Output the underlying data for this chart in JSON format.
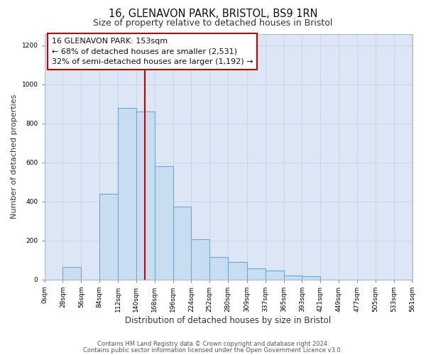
{
  "title1": "16, GLENAVON PARK, BRISTOL, BS9 1RN",
  "title2": "Size of property relative to detached houses in Bristol",
  "xlabel": "Distribution of detached houses by size in Bristol",
  "ylabel": "Number of detached properties",
  "bin_edges": [
    0,
    28,
    56,
    84,
    112,
    140,
    168,
    196,
    224,
    252,
    280,
    309,
    337,
    365,
    393,
    421,
    449,
    477,
    505,
    533,
    561
  ],
  "bar_heights": [
    0,
    65,
    0,
    440,
    880,
    860,
    580,
    375,
    205,
    115,
    90,
    55,
    45,
    20,
    15,
    0,
    0,
    0,
    0,
    0
  ],
  "bar_color": "#c9ddf0",
  "bar_edge_color": "#6aaad4",
  "vline_x": 153,
  "vline_color": "#cc0000",
  "ylim": [
    0,
    1260
  ],
  "yticks": [
    0,
    200,
    400,
    600,
    800,
    1000,
    1200
  ],
  "xtick_labels": [
    "0sqm",
    "28sqm",
    "56sqm",
    "84sqm",
    "112sqm",
    "140sqm",
    "168sqm",
    "196sqm",
    "224sqm",
    "252sqm",
    "280sqm",
    "309sqm",
    "337sqm",
    "365sqm",
    "393sqm",
    "421sqm",
    "449sqm",
    "477sqm",
    "505sqm",
    "533sqm",
    "561sqm"
  ],
  "annotation_title": "16 GLENAVON PARK: 153sqm",
  "annotation_line1": "← 68% of detached houses are smaller (2,531)",
  "annotation_line2": "32% of semi-detached houses are larger (1,192) →",
  "annotation_box_color": "#ffffff",
  "annotation_border_color": "#cc0000",
  "footer_line1": "Contains HM Land Registry data © Crown copyright and database right 2024.",
  "footer_line2": "Contains public sector information licensed under the Open Government Licence v3.0.",
  "grid_color": "#c8d4e8",
  "plot_bg_color": "#dce6f4",
  "fig_bg_color": "#ffffff",
  "title1_fontsize": 10.5,
  "title2_fontsize": 9,
  "annotation_fontsize": 8,
  "tick_fontsize": 6.5,
  "ylabel_fontsize": 8,
  "xlabel_fontsize": 8.5,
  "footer_fontsize": 6
}
